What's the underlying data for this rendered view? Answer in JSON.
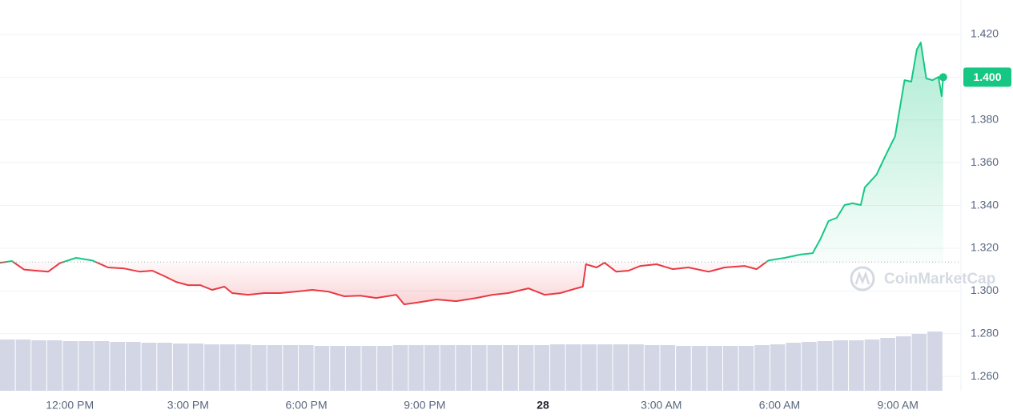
{
  "chart_data": {
    "type": "line",
    "x": [
      10.23,
      10.53,
      10.84,
      11.14,
      11.45,
      11.75,
      12.16,
      12.57,
      12.97,
      13.38,
      13.78,
      14.09,
      14.39,
      14.7,
      15.0,
      15.31,
      15.61,
      15.92,
      16.12,
      16.52,
      16.93,
      17.34,
      17.74,
      18.15,
      18.55,
      18.96,
      19.37,
      19.77,
      20.28,
      20.48,
      20.79,
      21.3,
      21.8,
      22.31,
      22.72,
      23.12,
      23.63,
      24.04,
      24.44,
      24.85,
      25.01,
      25.09,
      25.36,
      25.56,
      25.86,
      26.17,
      26.47,
      26.88,
      27.29,
      27.69,
      28.2,
      28.61,
      29.11,
      29.42,
      29.72,
      30.13,
      30.53,
      30.84,
      31.04,
      31.24,
      31.45,
      31.65,
      31.85,
      32.06,
      32.16,
      32.46,
      32.67,
      32.93,
      33.17,
      33.34,
      33.48,
      33.58,
      33.72,
      33.88,
      34.03,
      34.11,
      34.15
    ],
    "series": [
      {
        "name": "Price",
        "color_up": "#16c784",
        "color_down": "#ea3943",
        "values": [
          1.3132,
          1.314,
          1.31,
          1.3095,
          1.309,
          1.313,
          1.3155,
          1.3143,
          1.311,
          1.3105,
          1.309,
          1.3095,
          1.307,
          1.3042,
          1.3027,
          1.3027,
          1.3005,
          1.302,
          1.299,
          1.2982,
          1.299,
          1.299,
          1.2997,
          1.3005,
          1.2997,
          1.2975,
          1.2978,
          1.2967,
          1.2982,
          1.2937,
          1.2945,
          1.296,
          1.2952,
          1.2967,
          1.2982,
          1.299,
          1.3012,
          1.2982,
          1.299,
          1.3012,
          1.302,
          1.3125,
          1.311,
          1.3132,
          1.309,
          1.3095,
          1.3117,
          1.3125,
          1.3102,
          1.311,
          1.309,
          1.311,
          1.3117,
          1.3102,
          1.3143,
          1.3155,
          1.317,
          1.3177,
          1.3244,
          1.3327,
          1.3342,
          1.3402,
          1.341,
          1.3402,
          1.3484,
          1.3544,
          1.3627,
          1.3724,
          1.3986,
          1.3979,
          1.4129,
          1.4162,
          1.3994,
          1.3986,
          1.4001,
          1.3911,
          1.4
        ]
      }
    ],
    "baseline": 1.3135,
    "current_price": {
      "value": 1.4,
      "label": "1.400"
    },
    "xlim": [
      10.23,
      34.6
    ],
    "ylim": [
      1.2533,
      1.4361
    ],
    "xticks": [
      {
        "value": 12,
        "label": "12:00 PM"
      },
      {
        "value": 15,
        "label": "3:00 PM"
      },
      {
        "value": 18,
        "label": "6:00 PM"
      },
      {
        "value": 21,
        "label": "9:00 PM"
      },
      {
        "value": 24,
        "label": "28"
      },
      {
        "value": 27,
        "label": "3:00 AM"
      },
      {
        "value": 30,
        "label": "6:00 AM"
      },
      {
        "value": 33,
        "label": "9:00 AM"
      }
    ],
    "yticks": [
      {
        "value": 1.26,
        "label": "1.260"
      },
      {
        "value": 1.28,
        "label": "1.280"
      },
      {
        "value": 1.3,
        "label": "1.300"
      },
      {
        "value": 1.32,
        "label": "1.320"
      },
      {
        "value": 1.34,
        "label": "1.340"
      },
      {
        "value": 1.36,
        "label": "1.360"
      },
      {
        "value": 1.38,
        "label": "1.380"
      },
      {
        "value": 1.4,
        "label": "1.400"
      },
      {
        "value": 1.42,
        "label": "1.420"
      }
    ],
    "grid": true,
    "volume": {
      "color": "#d3d7e5",
      "ylim": [
        0,
        80
      ],
      "values": [
        64,
        64,
        63,
        63,
        62,
        62,
        62,
        61,
        61,
        60,
        60,
        59,
        59,
        58,
        58,
        58,
        57,
        57,
        57,
        57,
        56,
        56,
        56,
        56,
        56,
        57,
        57,
        57,
        57,
        57,
        57,
        57,
        57,
        57,
        57,
        58,
        58,
        58,
        58,
        58,
        58,
        57,
        57,
        56,
        56,
        56,
        56,
        56,
        57,
        58,
        60,
        61,
        62,
        63,
        63,
        64,
        66,
        68,
        71,
        74
      ]
    },
    "watermark": "CoinMarketCap"
  }
}
